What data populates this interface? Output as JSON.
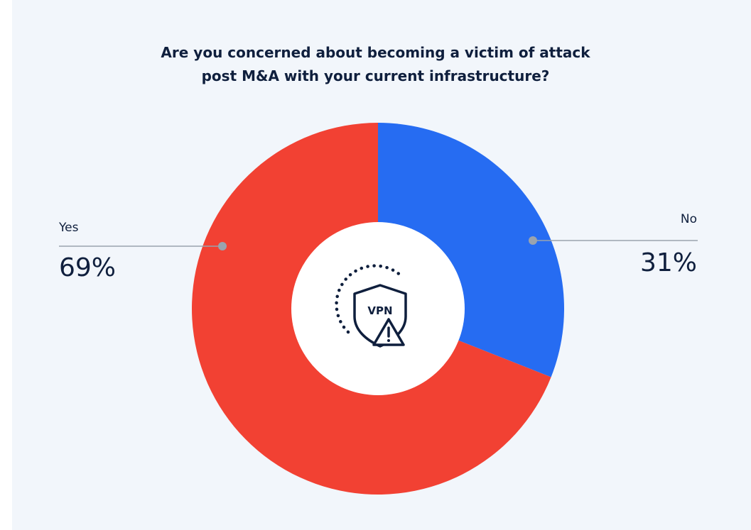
{
  "chart_data": {
    "type": "pie",
    "title_lines": [
      "Are you concerned about becoming a victim of attack",
      "post M&A with your current infrastructure?"
    ],
    "slices": [
      {
        "label": "No",
        "value": 31,
        "value_label": "31%",
        "color": "#266cf2"
      },
      {
        "label": "Yes",
        "value": 69,
        "value_label": "69%",
        "color": "#f24133"
      }
    ],
    "donut": true,
    "center_icon": {
      "name": "vpn-shield-warning-icon",
      "text": "VPN"
    },
    "leader_color": "#9aa3ae",
    "background": "#f2f6fb"
  }
}
